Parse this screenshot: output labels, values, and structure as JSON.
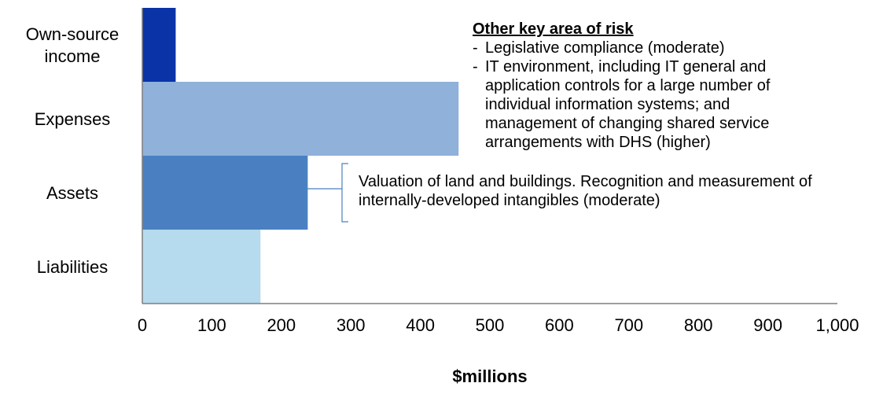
{
  "chart_data": {
    "type": "bar",
    "orientation": "horizontal",
    "categories": [
      "Own-source income",
      "Expenses",
      "Assets",
      "Liabilities"
    ],
    "category_label_lines": [
      [
        "Own-source",
        "income"
      ],
      [
        "Expenses"
      ],
      [
        "Assets"
      ],
      [
        "Liabilities"
      ]
    ],
    "values": [
      48,
      455,
      238,
      170
    ],
    "bar_colors": [
      "#0A33A8",
      "#8FB1DA",
      "#4A80C2",
      "#B6DAEE"
    ],
    "xlim": [
      0,
      1000
    ],
    "xticks": [
      0,
      100,
      200,
      300,
      400,
      500,
      600,
      700,
      800,
      900,
      1000
    ],
    "xtick_labels": [
      "0",
      "100",
      "200",
      "300",
      "400",
      "500",
      "600",
      "700",
      "800",
      "900",
      "1,000"
    ],
    "xlabel": "$millions",
    "ylabel": "",
    "title": "",
    "grid": false,
    "legend": "none",
    "axis_color": "#7F7F7F",
    "annotations": {
      "other_risk": {
        "heading": "Other key area of risk",
        "items": [
          "Legislative compliance (moderate)",
          "IT environment, including IT general and application controls for a large number of individual information systems; and management of changing shared service arrangements with DHS (higher)"
        ]
      },
      "assets_risk": {
        "text": "Valuation of land and buildings. Recognition and measurement of internally-developed intangibles (moderate)",
        "bracket_color": "#4A80C2"
      }
    }
  }
}
